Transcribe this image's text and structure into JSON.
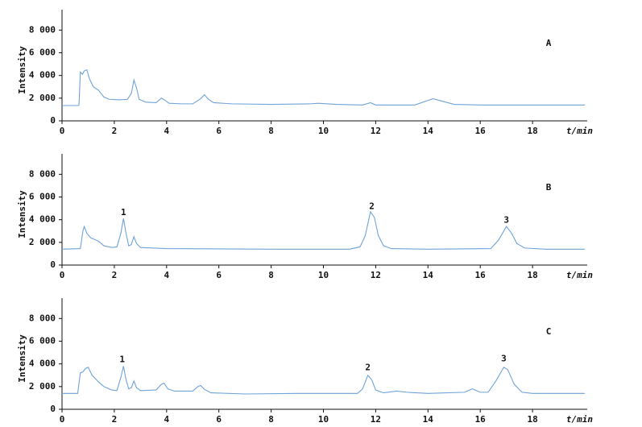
{
  "chart_data": [
    {
      "type": "line",
      "panel": "A",
      "ylabel": "Intensity",
      "xlabel": "t/min",
      "color": "#6fa3d8",
      "xlim": [
        0,
        20
      ],
      "ylim": [
        0,
        9800
      ],
      "xticks": [
        0,
        2,
        4,
        6,
        8,
        10,
        12,
        14,
        16,
        18
      ],
      "yticks": [
        0,
        {
          "value": 2000,
          "label": "2 000"
        },
        {
          "value": 4000,
          "label": "4 000"
        },
        {
          "value": 6000,
          "label": "6 000"
        },
        {
          "value": 8000,
          "label": "8 000"
        }
      ],
      "x": [
        0,
        0.6,
        0.65,
        0.7,
        0.78,
        0.85,
        0.95,
        1.05,
        1.2,
        1.4,
        1.6,
        1.8,
        2.2,
        2.5,
        2.65,
        2.75,
        2.85,
        2.95,
        3.2,
        3.6,
        3.8,
        3.95,
        4.1,
        4.6,
        5.0,
        5.3,
        5.45,
        5.6,
        5.8,
        6.5,
        8,
        9.5,
        9.8,
        10.5,
        11.5,
        11.8,
        12,
        13.5,
        14,
        14.2,
        14.6,
        15,
        16,
        18,
        20
      ],
      "values": [
        1350,
        1350,
        1400,
        4300,
        4100,
        4400,
        4500,
        3700,
        3000,
        2700,
        2100,
        1900,
        1850,
        1900,
        2400,
        3600,
        2900,
        1900,
        1650,
        1600,
        2000,
        1800,
        1550,
        1500,
        1500,
        1950,
        2300,
        1900,
        1600,
        1500,
        1450,
        1500,
        1550,
        1450,
        1400,
        1600,
        1400,
        1400,
        1800,
        1950,
        1700,
        1450,
        1400,
        1400,
        1400
      ],
      "annotations": []
    },
    {
      "type": "line",
      "panel": "B",
      "ylabel": "Intensity",
      "xlabel": "t/min",
      "color": "#6fa3d8",
      "xlim": [
        0,
        20
      ],
      "ylim": [
        0,
        9800
      ],
      "xticks": [
        0,
        2,
        4,
        6,
        8,
        10,
        12,
        14,
        16,
        18
      ],
      "yticks": [
        0,
        {
          "value": 2000,
          "label": "2 000"
        },
        {
          "value": 4000,
          "label": "4 000"
        },
        {
          "value": 6000,
          "label": "6 000"
        },
        {
          "value": 8000,
          "label": "8 000"
        }
      ],
      "x": [
        0,
        0.7,
        0.8,
        0.85,
        0.95,
        1.1,
        1.4,
        1.6,
        1.9,
        2.1,
        2.25,
        2.35,
        2.45,
        2.55,
        2.65,
        2.75,
        2.85,
        3.0,
        4,
        8,
        11,
        11.4,
        11.6,
        11.8,
        11.95,
        12.1,
        12.3,
        12.6,
        14,
        16.4,
        16.7,
        17.0,
        17.2,
        17.4,
        17.7,
        18.5,
        20
      ],
      "values": [
        1400,
        1450,
        3000,
        3400,
        2800,
        2400,
        2100,
        1700,
        1550,
        1600,
        2800,
        4100,
        2800,
        1700,
        1800,
        2500,
        1900,
        1550,
        1450,
        1400,
        1400,
        1600,
        2600,
        4700,
        4200,
        2600,
        1700,
        1450,
        1400,
        1450,
        2200,
        3400,
        2800,
        1900,
        1500,
        1400,
        1400
      ],
      "annotations": [
        {
          "text": "1",
          "x": 2.35,
          "y": 4600
        },
        {
          "text": "2",
          "x": 11.85,
          "y": 5150
        },
        {
          "text": "3",
          "x": 17,
          "y": 3950
        }
      ]
    },
    {
      "type": "line",
      "panel": "C",
      "ylabel": "Intensity",
      "xlabel": "t/min",
      "color": "#6fa3d8",
      "xlim": [
        0,
        20
      ],
      "ylim": [
        0,
        9800
      ],
      "xticks": [
        0,
        2,
        4,
        6,
        8,
        10,
        12,
        14,
        16,
        18
      ],
      "yticks": [
        0,
        {
          "value": 2000,
          "label": "2 000"
        },
        {
          "value": 4000,
          "label": "4 000"
        },
        {
          "value": 6000,
          "label": "6 000"
        },
        {
          "value": 8000,
          "label": "8 000"
        }
      ],
      "x": [
        0,
        0.6,
        0.7,
        0.8,
        0.9,
        1.0,
        1.15,
        1.4,
        1.6,
        1.9,
        2.1,
        2.25,
        2.35,
        2.45,
        2.55,
        2.65,
        2.75,
        2.85,
        3.0,
        3.6,
        3.8,
        3.9,
        4.05,
        4.3,
        5.0,
        5.2,
        5.3,
        5.45,
        5.7,
        7,
        9,
        10,
        11.3,
        11.5,
        11.7,
        11.85,
        12,
        12.3,
        12.8,
        13.2,
        14,
        15.4,
        15.7,
        16,
        16.3,
        16.6,
        16.9,
        17.05,
        17.3,
        17.6,
        18,
        20
      ],
      "values": [
        1400,
        1400,
        3200,
        3300,
        3600,
        3700,
        3000,
        2400,
        2000,
        1700,
        1650,
        2800,
        3800,
        2600,
        1800,
        1900,
        2500,
        1900,
        1650,
        1700,
        2200,
        2300,
        1800,
        1600,
        1600,
        2000,
        2100,
        1750,
        1450,
        1350,
        1400,
        1400,
        1400,
        1800,
        3000,
        2600,
        1700,
        1450,
        1600,
        1500,
        1400,
        1500,
        1800,
        1500,
        1500,
        2500,
        3700,
        3500,
        2200,
        1500,
        1400,
        1400
      ],
      "annotations": [
        {
          "text": "1",
          "x": 2.3,
          "y": 4350
        },
        {
          "text": "2",
          "x": 11.7,
          "y": 3650
        },
        {
          "text": "3",
          "x": 16.9,
          "y": 4450
        }
      ]
    }
  ]
}
